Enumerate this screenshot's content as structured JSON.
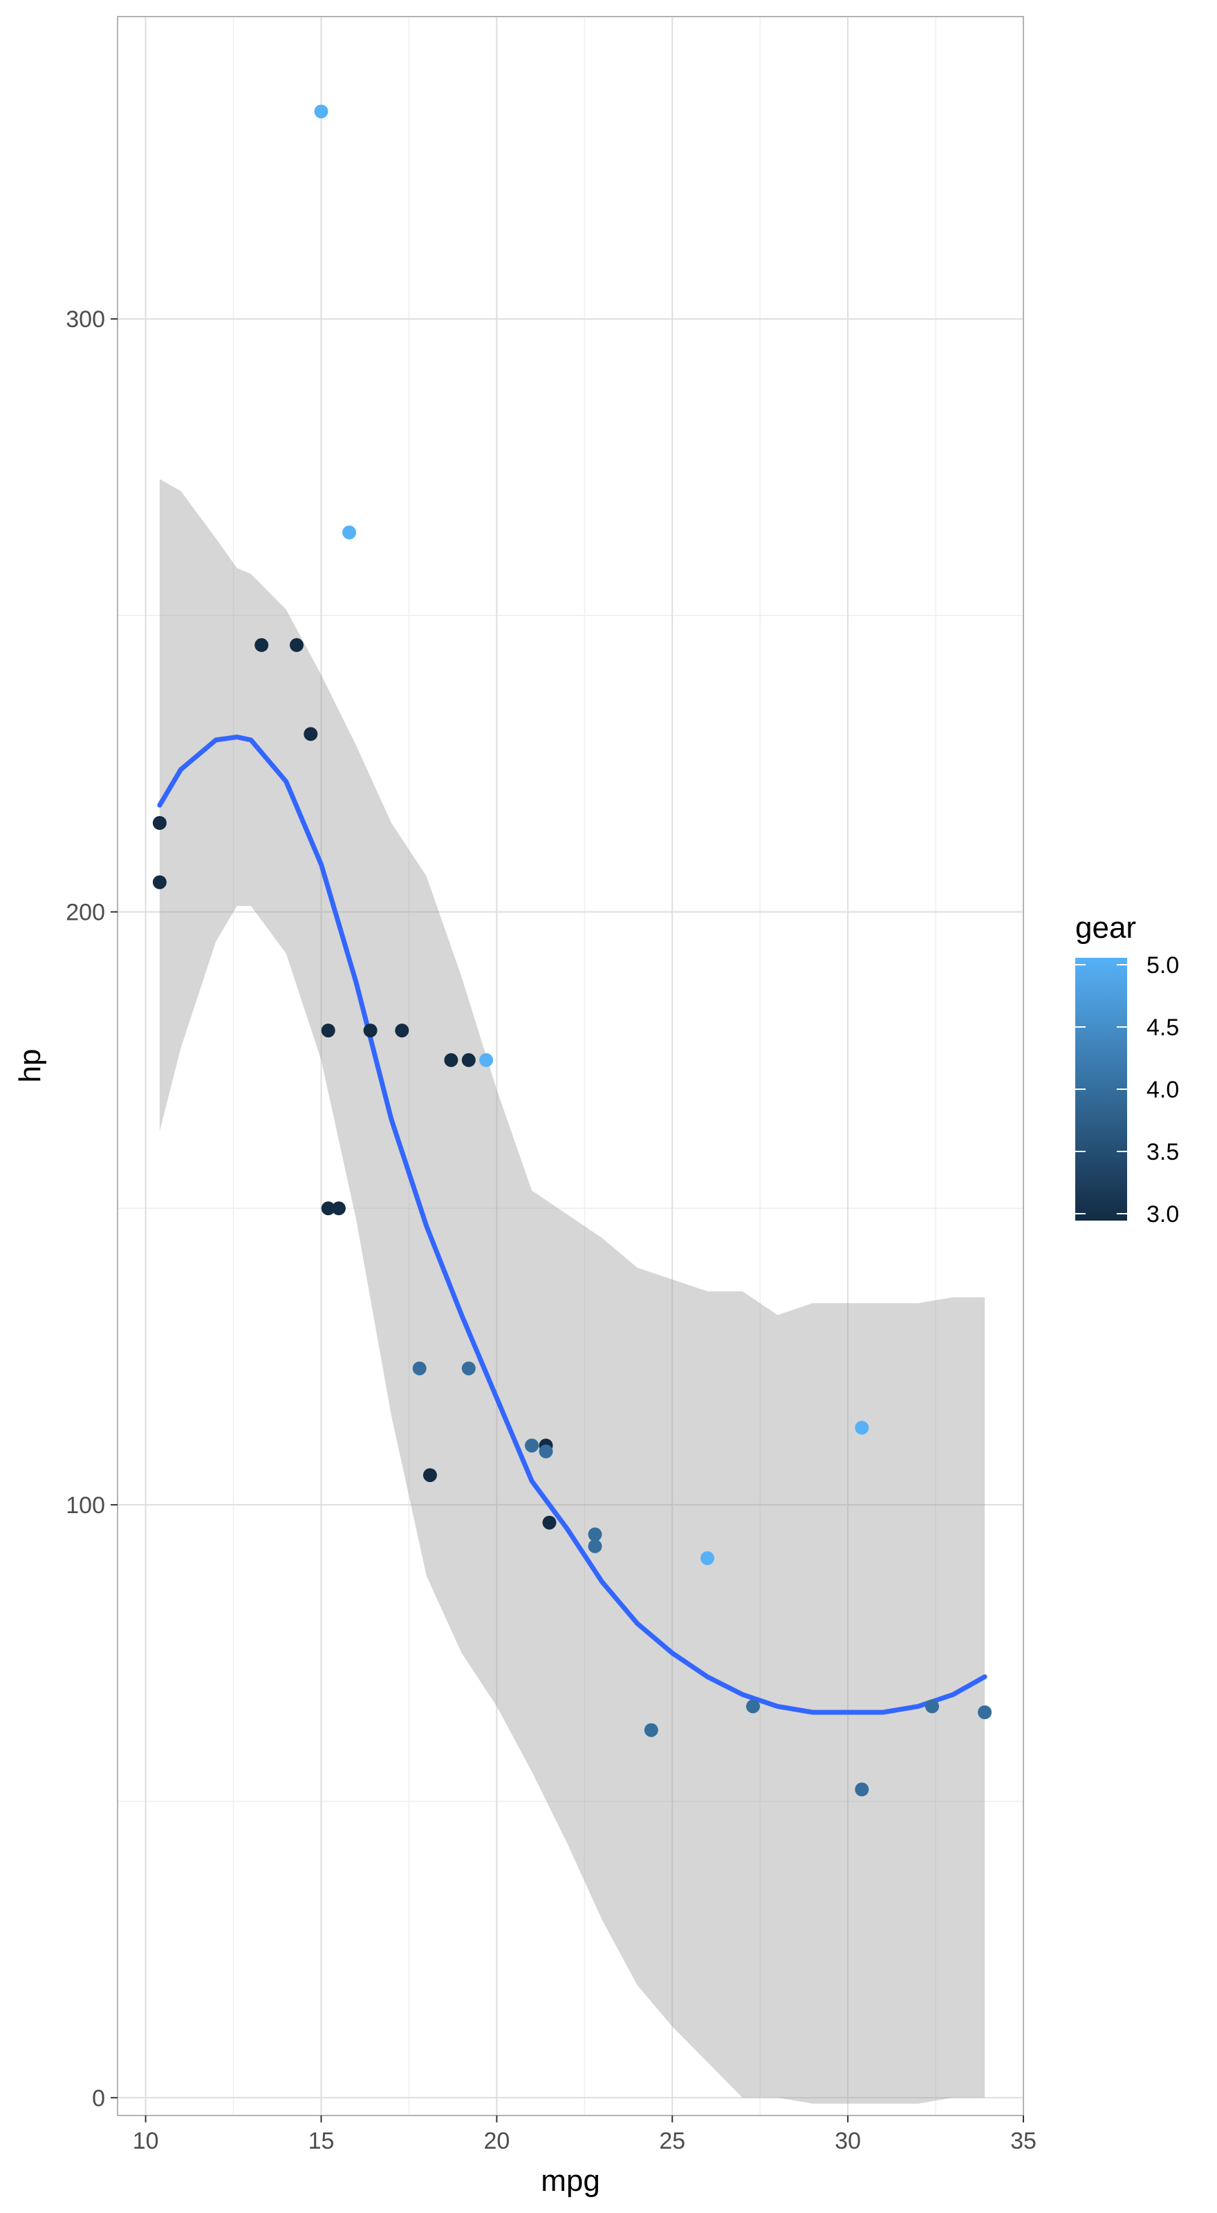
{
  "chart_data": {
    "type": "scatter",
    "xlabel": "mpg",
    "ylabel": "hp",
    "xlim": [
      9.2,
      35.0
    ],
    "ylim": [
      -3,
      351
    ],
    "x_ticks": [
      10,
      15,
      20,
      25,
      30,
      35
    ],
    "y_ticks": [
      0,
      100,
      200,
      300
    ],
    "grid": true,
    "legend": {
      "title": "gear",
      "type": "colorbar",
      "placement": "right",
      "range": [
        3.0,
        5.0
      ],
      "labels": [
        "5.0",
        "4.5",
        "4.0",
        "3.5",
        "3.0"
      ],
      "colors": [
        "#132B43",
        "#56B1F7"
      ]
    },
    "points": [
      {
        "x": 21.0,
        "y": 110,
        "gear": 4
      },
      {
        "x": 21.0,
        "y": 110,
        "gear": 4
      },
      {
        "x": 22.8,
        "y": 93,
        "gear": 4
      },
      {
        "x": 21.4,
        "y": 110,
        "gear": 3
      },
      {
        "x": 18.7,
        "y": 175,
        "gear": 3
      },
      {
        "x": 18.1,
        "y": 105,
        "gear": 3
      },
      {
        "x": 14.3,
        "y": 245,
        "gear": 3
      },
      {
        "x": 24.4,
        "y": 62,
        "gear": 4
      },
      {
        "x": 22.8,
        "y": 95,
        "gear": 4
      },
      {
        "x": 19.2,
        "y": 123,
        "gear": 4
      },
      {
        "x": 17.8,
        "y": 123,
        "gear": 4
      },
      {
        "x": 16.4,
        "y": 180,
        "gear": 3
      },
      {
        "x": 17.3,
        "y": 180,
        "gear": 3
      },
      {
        "x": 15.2,
        "y": 180,
        "gear": 3
      },
      {
        "x": 10.4,
        "y": 205,
        "gear": 3
      },
      {
        "x": 10.4,
        "y": 215,
        "gear": 3
      },
      {
        "x": 14.7,
        "y": 230,
        "gear": 3
      },
      {
        "x": 32.4,
        "y": 66,
        "gear": 4
      },
      {
        "x": 30.4,
        "y": 52,
        "gear": 4
      },
      {
        "x": 33.9,
        "y": 65,
        "gear": 4
      },
      {
        "x": 21.5,
        "y": 97,
        "gear": 3
      },
      {
        "x": 15.5,
        "y": 150,
        "gear": 3
      },
      {
        "x": 15.2,
        "y": 150,
        "gear": 3
      },
      {
        "x": 13.3,
        "y": 245,
        "gear": 3
      },
      {
        "x": 19.2,
        "y": 175,
        "gear": 3
      },
      {
        "x": 27.3,
        "y": 66,
        "gear": 4
      },
      {
        "x": 26.0,
        "y": 91,
        "gear": 5
      },
      {
        "x": 30.4,
        "y": 113,
        "gear": 5
      },
      {
        "x": 15.8,
        "y": 264,
        "gear": 5
      },
      {
        "x": 19.7,
        "y": 175,
        "gear": 5
      },
      {
        "x": 15.0,
        "y": 335,
        "gear": 5
      },
      {
        "x": 21.4,
        "y": 109,
        "gear": 4
      }
    ],
    "smooth": {
      "x": [
        10.4,
        11.0,
        12.0,
        12.6,
        13.0,
        14.0,
        15.0,
        16.0,
        17.0,
        18.0,
        19.0,
        20.0,
        21.0,
        22.0,
        23.0,
        24.0,
        25.0,
        26.0,
        27.0,
        28.0,
        29.0,
        30.0,
        31.0,
        32.0,
        33.0,
        33.9
      ],
      "y": [
        218,
        224,
        229,
        229.5,
        229,
        222,
        208,
        188,
        165,
        147,
        132,
        118,
        104,
        96,
        87,
        80,
        75,
        71,
        68,
        66,
        65,
        65,
        65,
        66,
        68,
        71
      ],
      "lower": [
        163,
        177,
        195,
        201,
        201,
        193,
        175,
        148,
        115,
        88,
        75,
        66,
        55,
        43,
        30,
        19,
        12,
        6,
        0,
        0,
        -1,
        -1,
        -1,
        -1,
        0,
        0
      ],
      "upper": [
        273,
        271,
        263,
        258,
        257,
        251,
        240,
        228,
        215,
        206,
        189,
        170,
        153,
        149,
        145,
        140,
        138,
        136,
        136,
        132,
        134,
        134,
        134,
        134,
        135,
        135
      ]
    }
  }
}
